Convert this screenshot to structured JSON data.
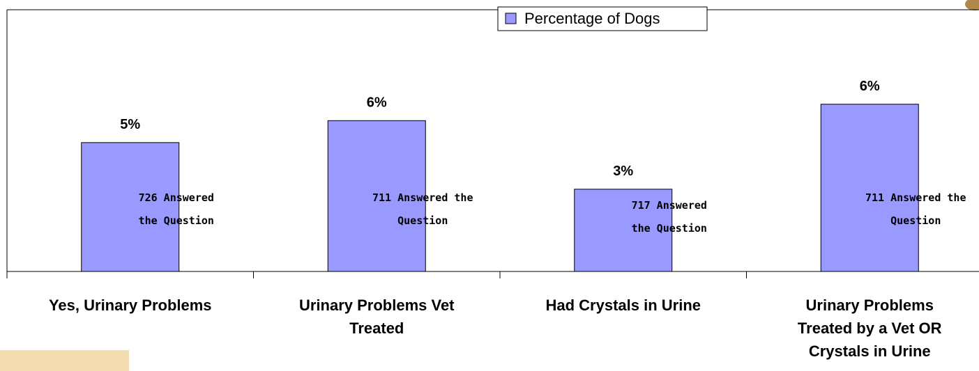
{
  "chart_data": {
    "type": "bar",
    "legend": "Percentage of Dogs",
    "legend_position": "top",
    "color": "#9999ff",
    "categories": [
      "Yes, Urinary Problems",
      "Urinary Problems Vet\nTreated",
      "Had Crystals in Urine",
      "Urinary Problems\nTreated by a Vet OR\nCrystals in Urine"
    ],
    "values": [
      4.7,
      5.5,
      3.0,
      6.1
    ],
    "value_labels": [
      "5%",
      "6%",
      "3%",
      "6%"
    ],
    "annotations": [
      "726 Answered\nthe Question",
      "711 Answered the\nQuestion",
      "717 Answered\nthe Question",
      "711 Answered the\nQuestion"
    ],
    "ylim": [
      0,
      9.9
    ]
  }
}
